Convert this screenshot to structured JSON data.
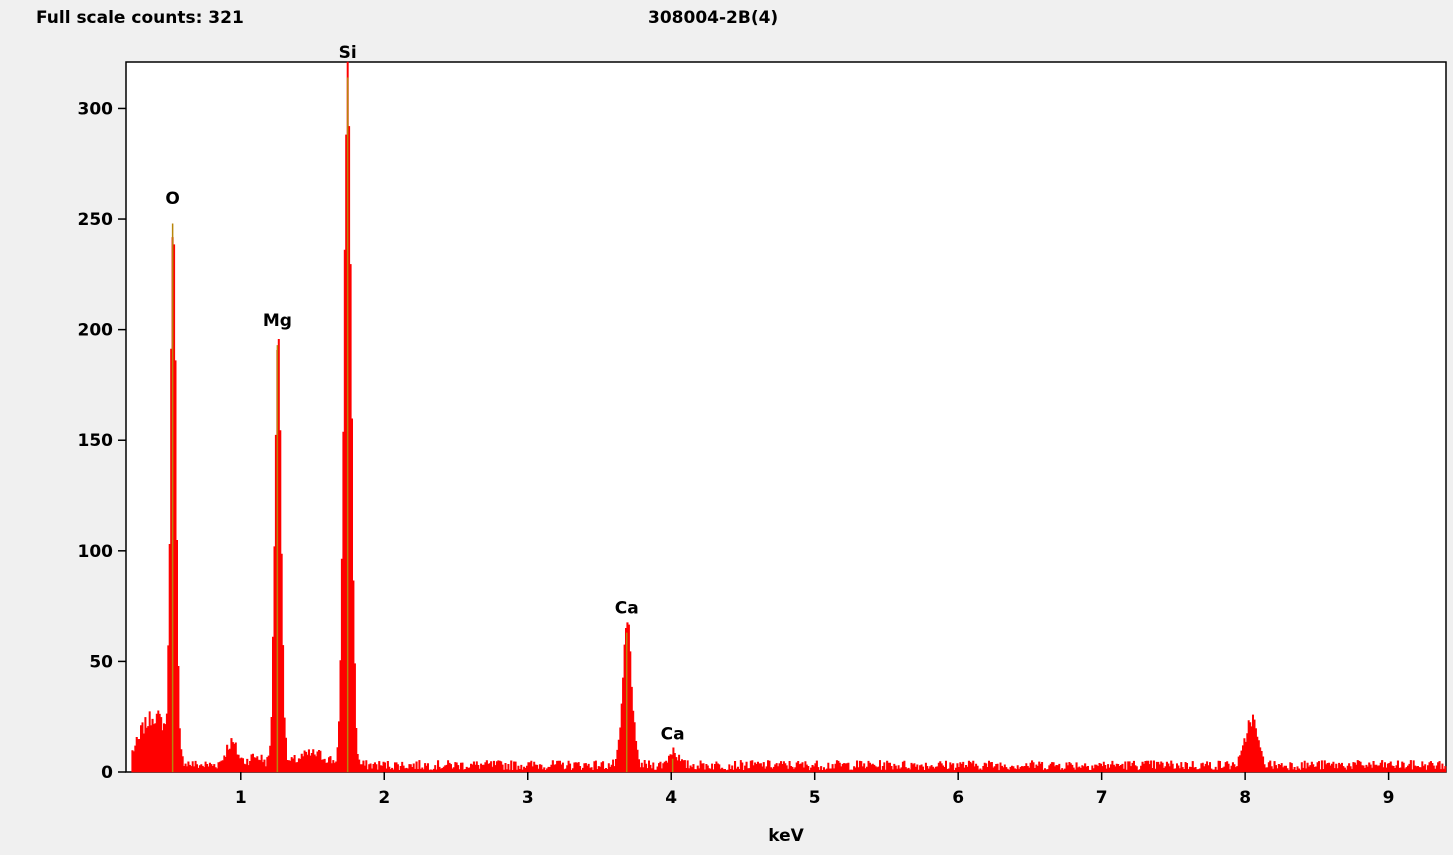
{
  "header": {
    "full_scale_label": "Full scale counts: 321",
    "title": "308004-2B(4)"
  },
  "colors": {
    "background": "#f0f0f0",
    "plot_background": "#ffffff",
    "spectrum_fill": "#ff0000",
    "marker_line": "#b8860b"
  },
  "chart_data": {
    "type": "area",
    "title": "308004-2B(4)",
    "xlabel": "keV",
    "ylabel": "",
    "xlim": [
      0.2,
      9.4
    ],
    "ylim": [
      0,
      321
    ],
    "x_ticks": [
      1,
      2,
      3,
      4,
      5,
      6,
      7,
      8,
      9
    ],
    "y_ticks": [
      0,
      50,
      100,
      150,
      200,
      250,
      300
    ],
    "grid": false,
    "baseline": 3,
    "peaks": [
      {
        "center": 0.26,
        "height": 5,
        "sigma": 0.05
      },
      {
        "center": 0.4,
        "height": 22,
        "sigma": 0.09
      },
      {
        "center": 0.525,
        "height": 245,
        "sigma": 0.018
      },
      {
        "center": 0.93,
        "height": 10,
        "sigma": 0.04
      },
      {
        "center": 1.1,
        "height": 4,
        "sigma": 0.05
      },
      {
        "center": 1.255,
        "height": 193,
        "sigma": 0.022
      },
      {
        "center": 1.5,
        "height": 5,
        "sigma": 0.1
      },
      {
        "center": 1.74,
        "height": 316,
        "sigma": 0.025
      },
      {
        "center": 3.69,
        "height": 64,
        "sigma": 0.03
      },
      {
        "center": 4.01,
        "height": 7,
        "sigma": 0.03
      },
      {
        "center": 8.04,
        "height": 21,
        "sigma": 0.04
      }
    ],
    "annotations": [
      {
        "label": "O",
        "x": 0.525,
        "y": 254
      },
      {
        "label": "Mg",
        "x": 1.255,
        "y": 199
      },
      {
        "label": "Si",
        "x": 1.745,
        "y": 320
      },
      {
        "label": "Ca",
        "x": 3.69,
        "y": 69
      },
      {
        "label": "Ca",
        "x": 4.01,
        "y": 12
      }
    ]
  }
}
